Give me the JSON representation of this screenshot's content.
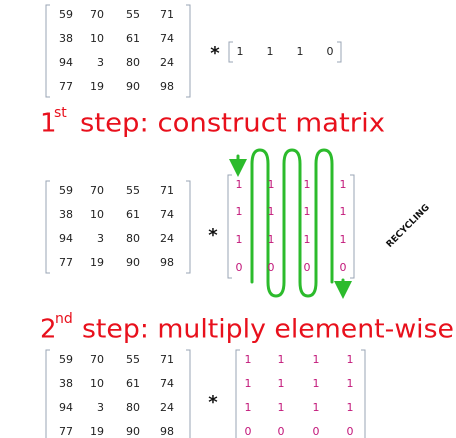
{
  "matrix": [
    [
      59,
      70,
      55,
      71
    ],
    [
      38,
      10,
      61,
      74
    ],
    [
      94,
      3,
      80,
      24
    ],
    [
      77,
      19,
      90,
      98
    ]
  ],
  "operator": "*",
  "vector": [
    1,
    1,
    1,
    0
  ],
  "step1": {
    "number": "1",
    "suffix": "st",
    "text": "step:  construct matrix"
  },
  "recycled_matrix": [
    [
      1,
      1,
      1,
      1
    ],
    [
      1,
      1,
      1,
      1
    ],
    [
      1,
      1,
      1,
      1
    ],
    [
      0,
      0,
      0,
      0
    ]
  ],
  "recycling_label": "RECYCLING",
  "step2": {
    "number": "2",
    "suffix": "nd",
    "text": "step:  multiply  element-wise"
  }
}
